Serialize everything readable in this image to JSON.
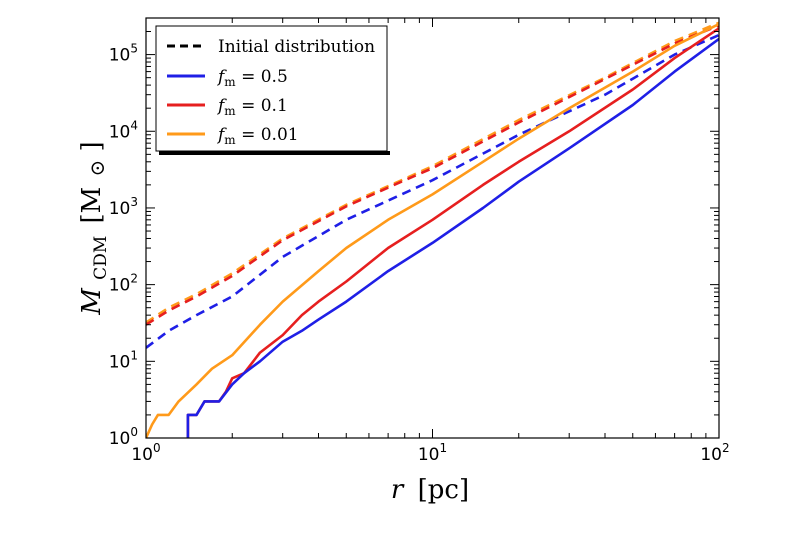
{
  "chart_data": {
    "type": "line",
    "xscale": "log",
    "yscale": "log",
    "xlim": [
      1,
      100
    ],
    "ylim": [
      1,
      300000
    ],
    "xlabel": {
      "var": "r",
      "unit": "[pc]"
    },
    "ylabel": {
      "var": "M",
      "sub": "CDM",
      "unit_pre": "[M",
      "unit_sym": "⊙",
      "unit_post": "]"
    },
    "xticks": [
      {
        "value": 1,
        "base": "10",
        "exp": "0"
      },
      {
        "value": 10,
        "base": "10",
        "exp": "1"
      },
      {
        "value": 100,
        "base": "10",
        "exp": "2"
      }
    ],
    "yticks": [
      {
        "value": 1,
        "base": "10",
        "exp": "0"
      },
      {
        "value": 10,
        "base": "10",
        "exp": "1"
      },
      {
        "value": 100,
        "base": "10",
        "exp": "2"
      },
      {
        "value": 1000,
        "base": "10",
        "exp": "3"
      },
      {
        "value": 10000,
        "base": "10",
        "exp": "4"
      },
      {
        "value": 100000,
        "base": "10",
        "exp": "5"
      }
    ],
    "legend": {
      "placement": "top-left",
      "entries": [
        {
          "label": "Initial distribution",
          "color": "#000000",
          "dash": true
        },
        {
          "label_var": "f",
          "label_sub": "m",
          "label_rest": " = 0.5",
          "color": "#1f1fe6",
          "dash": false
        },
        {
          "label_var": "f",
          "label_sub": "m",
          "label_rest": " = 0.1",
          "color": "#e61f1f",
          "dash": false
        },
        {
          "label_var": "f",
          "label_sub": "m",
          "label_rest": " = 0.01",
          "color": "#ff9a1a",
          "dash": false
        }
      ]
    },
    "series": [
      {
        "color": "#ff9a1a",
        "dash": true,
        "x": [
          1,
          1.2,
          1.5,
          2,
          3,
          5,
          8,
          10,
          20,
          40,
          70,
          100
        ],
        "y": [
          32,
          50,
          75,
          140,
          400,
          1100,
          2400,
          3500,
          14000,
          50000,
          150000,
          260000
        ]
      },
      {
        "color": "#e61f1f",
        "dash": true,
        "x": [
          1,
          1.2,
          1.5,
          2,
          3,
          5,
          8,
          10,
          20,
          40,
          70,
          100
        ],
        "y": [
          30,
          46,
          70,
          130,
          380,
          1050,
          2300,
          3300,
          13000,
          48000,
          140000,
          240000
        ]
      },
      {
        "color": "#1f1fe6",
        "dash": true,
        "x": [
          1,
          1.2,
          1.5,
          2,
          3,
          5,
          10,
          20,
          40,
          70,
          100
        ],
        "y": [
          15,
          25,
          40,
          70,
          230,
          700,
          2300,
          9000,
          30000,
          100000,
          180000
        ]
      },
      {
        "color": "#ff9a1a",
        "dash": false,
        "x": [
          1,
          1.05,
          1.1,
          1.2,
          1.3,
          1.5,
          1.7,
          2,
          2.5,
          3,
          4,
          5,
          7,
          10,
          15,
          20,
          30,
          50,
          70,
          100
        ],
        "y": [
          1,
          1.5,
          2,
          2,
          3,
          5,
          8,
          12,
          30,
          60,
          150,
          300,
          700,
          1500,
          4000,
          8000,
          20000,
          60000,
          130000,
          250000
        ]
      },
      {
        "color": "#e61f1f",
        "dash": false,
        "x": [
          1.4,
          1.4,
          1.5,
          1.6,
          1.7,
          1.8,
          1.9,
          2,
          2.2,
          2.5,
          3,
          3.5,
          4,
          5,
          7,
          10,
          15,
          20,
          30,
          50,
          70,
          100
        ],
        "y": [
          1,
          2,
          2,
          3,
          3,
          3,
          4,
          6,
          7,
          13,
          22,
          40,
          60,
          110,
          300,
          700,
          2000,
          4000,
          10000,
          35000,
          90000,
          220000
        ]
      },
      {
        "color": "#1f1fe6",
        "dash": false,
        "x": [
          1.4,
          1.4,
          1.5,
          1.6,
          1.7,
          1.8,
          2,
          2.2,
          2.5,
          3,
          3.5,
          4,
          5,
          7,
          10,
          15,
          20,
          30,
          50,
          70,
          100
        ],
        "y": [
          1,
          2,
          2,
          3,
          3,
          3,
          5,
          7,
          10,
          18,
          25,
          35,
          60,
          150,
          350,
          1000,
          2200,
          6000,
          22000,
          60000,
          160000
        ]
      }
    ]
  }
}
